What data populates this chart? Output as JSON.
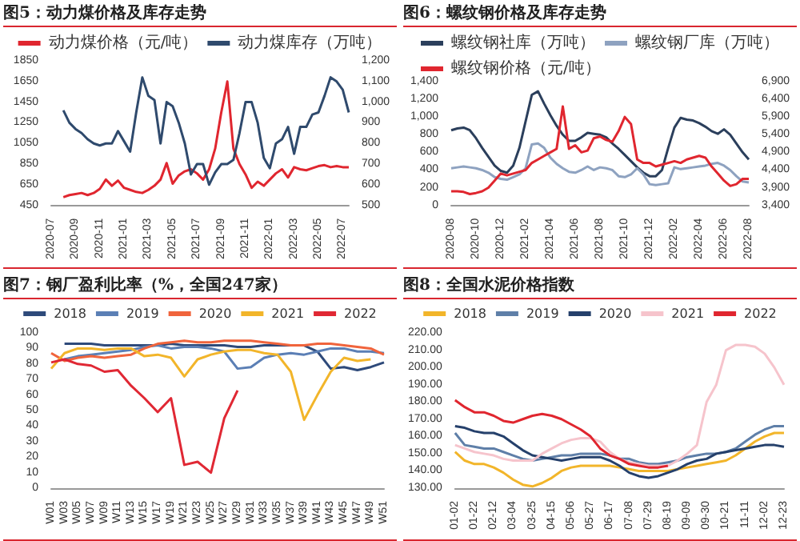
{
  "chart_data": [
    {
      "type": "line",
      "title": "图5：动力煤价格及库存走势",
      "legend": "top",
      "marker": "none",
      "categories": [
        "2020-07",
        null,
        null,
        null,
        "2020-09",
        null,
        null,
        null,
        "2020-11",
        null,
        null,
        null,
        "2021-01",
        null,
        null,
        null,
        "2021-03",
        null,
        null,
        null,
        "2021-05",
        null,
        null,
        null,
        "2021-07",
        null,
        null,
        null,
        "2021-09",
        null,
        null,
        null,
        "2021-11",
        null,
        null,
        null,
        "2022-01",
        null,
        null,
        null,
        "2022-03",
        null,
        null,
        null,
        "2022-05",
        null,
        null,
        null,
        "2022-07",
        null
      ],
      "ylim": [
        450,
        1850
      ],
      "yticks": [
        450,
        650,
        850,
        1050,
        1250,
        1450,
        1650,
        1850
      ],
      "y2lim": [
        500,
        1200
      ],
      "y2ticks": [
        500,
        600,
        700,
        800,
        900,
        {
          "value": 1000,
          "label": "1,000"
        },
        {
          "value": 1100,
          "label": "1,100"
        },
        {
          "value": 1200,
          "label": "1,200"
        }
      ],
      "series": [
        {
          "name": "动力煤价格（元/吨）",
          "color": "#e0262f",
          "values": [
            null,
            null,
            530,
            550,
            560,
            570,
            550,
            570,
            610,
            700,
            640,
            690,
            620,
            600,
            580,
            570,
            600,
            640,
            700,
            860,
            660,
            740,
            780,
            800,
            760,
            700,
            800,
            1000,
            1350,
            1650,
            1000,
            850,
            750,
            620,
            680,
            640,
            700,
            760,
            800,
            720,
            820,
            800,
            790,
            810,
            830,
            840,
            820,
            830,
            820,
            820
          ]
        },
        {
          "name": "动力煤库存（万吨）",
          "color": "#2f4a6d",
          "axis": "y2",
          "values": [
            null,
            null,
            960,
            900,
            870,
            850,
            820,
            800,
            790,
            800,
            800,
            860,
            810,
            760,
            950,
            1120,
            1030,
            1010,
            800,
            1000,
            980,
            900,
            800,
            650,
            700,
            700,
            600,
            660,
            700,
            700,
            720,
            850,
            1000,
            1000,
            900,
            730,
            680,
            800,
            820,
            880,
            750,
            880,
            880,
            940,
            950,
            1030,
            1120,
            1100,
            1060,
            950
          ]
        }
      ]
    },
    {
      "type": "line",
      "title": "图6：螺纹钢价格及库存走势",
      "legend": "top",
      "marker": "none",
      "categories": [
        "2020-08",
        null,
        null,
        null,
        "2020-10",
        null,
        null,
        null,
        "2020-12",
        null,
        null,
        null,
        "2021-02",
        null,
        null,
        null,
        "2021-04",
        null,
        null,
        null,
        "2021-06",
        null,
        null,
        null,
        "2021-08",
        null,
        null,
        null,
        "2021-10",
        null,
        null,
        null,
        "2021-12",
        null,
        null,
        null,
        "2022-02",
        null,
        null,
        null,
        "2022-04",
        null,
        null,
        null,
        "2022-06",
        null,
        null,
        null,
        "2022-08"
      ],
      "ylim": [
        0,
        1400
      ],
      "yticks": [
        0,
        200,
        400,
        600,
        800,
        {
          "value": 1000,
          "label": "1,000"
        },
        {
          "value": 1200,
          "label": "1,200"
        },
        {
          "value": 1400,
          "label": "1,400"
        }
      ],
      "y2lim": [
        3400,
        6900
      ],
      "y2ticks": [
        {
          "value": 3400,
          "label": "3,400"
        },
        {
          "value": 3900,
          "label": "3,900"
        },
        {
          "value": 4400,
          "label": "4,400"
        },
        {
          "value": 4900,
          "label": "4,900"
        },
        {
          "value": 5400,
          "label": "5,400"
        },
        {
          "value": 5900,
          "label": "5,900"
        },
        {
          "value": 6400,
          "label": "6,400"
        },
        {
          "value": 6900,
          "label": "6,900"
        }
      ],
      "series": [
        {
          "name": "螺纹钢社库（万吨）",
          "color": "#2b3f5c",
          "values": [
            850,
            870,
            880,
            850,
            760,
            650,
            550,
            450,
            390,
            370,
            450,
            650,
            950,
            1250,
            1290,
            1150,
            1020,
            900,
            800,
            730,
            730,
            770,
            820,
            810,
            800,
            770,
            700,
            640,
            570,
            500,
            430,
            370,
            330,
            330,
            400,
            650,
            880,
            990,
            970,
            960,
            930,
            890,
            840,
            810,
            860,
            800,
            700,
            600,
            520
          ]
        },
        {
          "name": "螺纹钢厂库（万吨）",
          "color": "#8ea2c0",
          "values": [
            420,
            430,
            440,
            430,
            420,
            400,
            370,
            320,
            300,
            290,
            320,
            350,
            420,
            690,
            700,
            650,
            540,
            470,
            420,
            380,
            370,
            400,
            440,
            400,
            430,
            420,
            400,
            330,
            320,
            350,
            420,
            350,
            240,
            230,
            240,
            250,
            430,
            410,
            420,
            430,
            440,
            450,
            470,
            480,
            450,
            400,
            330,
            270,
            260
          ]
        },
        {
          "name": "螺纹钢价格（元/吨）",
          "color": "#e0262f",
          "axis": "y2",
          "values": [
            3800,
            3800,
            3780,
            3720,
            3750,
            3800,
            3900,
            4100,
            4300,
            4250,
            4300,
            4350,
            4400,
            4600,
            4700,
            4800,
            4900,
            5000,
            6200,
            5000,
            5100,
            4900,
            4950,
            5300,
            5350,
            5250,
            5200,
            5500,
            5900,
            5700,
            4700,
            4600,
            4600,
            4500,
            4550,
            4600,
            4650,
            4600,
            4700,
            4750,
            4800,
            4750,
            4500,
            4300,
            4100,
            3950,
            4000,
            4150,
            4150
          ]
        }
      ]
    },
    {
      "type": "line",
      "title": "图7：钢厂盈利比率（%，全国247家）",
      "legend": "top",
      "marker": "none",
      "categories": [
        "W01",
        "W03",
        "W05",
        "W07",
        "W09",
        "W11",
        "W13",
        "W15",
        "W17",
        "W19",
        "W21",
        "W23",
        "W25",
        "W27",
        "W29",
        "W31",
        "W33",
        "W35",
        "W37",
        "W39",
        "W41",
        "W43",
        "W45",
        "W47",
        "W49",
        "W51"
      ],
      "ylim": [
        0,
        100
      ],
      "yticks": [
        0,
        10,
        20,
        30,
        40,
        50,
        60,
        70,
        80,
        90,
        100
      ],
      "series": [
        {
          "name": "2018",
          "color": "#2e4a7a",
          "values": [
            null,
            93,
            93,
            93,
            92,
            92,
            92,
            92,
            92,
            93,
            92,
            92,
            92,
            92,
            91,
            91,
            92,
            92,
            92,
            92,
            88,
            77,
            78,
            76,
            78,
            81
          ]
        },
        {
          "name": "2019",
          "color": "#5b7fb5",
          "values": [
            null,
            83,
            85,
            86,
            87,
            88,
            89,
            91,
            92,
            90,
            91,
            91,
            90,
            88,
            77,
            78,
            84,
            86,
            87,
            86,
            88,
            90,
            90,
            88,
            88,
            87
          ]
        },
        {
          "name": "2020",
          "color": "#f0643c",
          "values": [
            87,
            82,
            84,
            85,
            84,
            85,
            86,
            90,
            93,
            94,
            95,
            94,
            94,
            95,
            95,
            95,
            94,
            93,
            92,
            92,
            93,
            93,
            92,
            91,
            90,
            86
          ]
        },
        {
          "name": "2021",
          "color": "#f2b52a",
          "values": [
            77,
            87,
            90,
            90,
            89,
            90,
            90,
            85,
            86,
            84,
            72,
            83,
            86,
            88,
            89,
            89,
            87,
            86,
            75,
            44,
            60,
            75,
            84,
            82,
            83,
            null
          ]
        },
        {
          "name": "2022",
          "color": "#e02834",
          "values": [
            81,
            83,
            80,
            79,
            75,
            76,
            66,
            58,
            49,
            58,
            15,
            17,
            10,
            45,
            63,
            null,
            null,
            null,
            null,
            null,
            null,
            null,
            null,
            null,
            null,
            null
          ]
        }
      ]
    },
    {
      "type": "line",
      "title": "图8：全国水泥价格指数",
      "legend": "top",
      "marker": "none",
      "categories": [
        "01-02",
        null,
        "01-22",
        null,
        "02-12",
        null,
        "03-04",
        null,
        "03-25",
        null,
        "04-15",
        null,
        "05-06",
        null,
        "05-27",
        null,
        "06-17",
        null,
        "07-08",
        null,
        "07-29",
        null,
        "08-19",
        null,
        "09-09",
        null,
        "09-30",
        null,
        "10-21",
        null,
        "11-11",
        null,
        "12-02",
        null,
        "12-23"
      ],
      "ylim": [
        130,
        220
      ],
      "yticks": [
        {
          "value": 130,
          "label": "130.00"
        },
        {
          "value": 140,
          "label": "140.00"
        },
        {
          "value": 150,
          "label": "150.00"
        },
        {
          "value": 160,
          "label": "160.00"
        },
        {
          "value": 170,
          "label": "170.00"
        },
        {
          "value": 180,
          "label": "180.00"
        },
        {
          "value": 190,
          "label": "190.00"
        },
        {
          "value": 200,
          "label": "200.00"
        },
        {
          "value": 210,
          "label": "210.00"
        },
        {
          "value": 220,
          "label": "220.00"
        }
      ],
      "series": [
        {
          "name": "2018",
          "color": "#f2b52a",
          "values": [
            151,
            146,
            144,
            144,
            142,
            139,
            135,
            132,
            131,
            133,
            136,
            140,
            142,
            143,
            143,
            143,
            143,
            142,
            141,
            140,
            140,
            140,
            140,
            141,
            142,
            143,
            144,
            145,
            146,
            149,
            153,
            157,
            160,
            162,
            162
          ]
        },
        {
          "name": "2019",
          "color": "#5f7fa8",
          "values": [
            162,
            155,
            154,
            153,
            153,
            151,
            149,
            147,
            146,
            147,
            148,
            149,
            149,
            150,
            150,
            150,
            149,
            147,
            147,
            145,
            144,
            144,
            145,
            146,
            148,
            149,
            150,
            150,
            151,
            153,
            157,
            161,
            164,
            166,
            166
          ]
        },
        {
          "name": "2020",
          "color": "#25406b",
          "values": [
            166,
            165,
            163,
            162,
            162,
            160,
            156,
            152,
            149,
            148,
            147,
            146,
            147,
            148,
            148,
            148,
            146,
            143,
            139,
            137,
            136,
            137,
            139,
            141,
            144,
            146,
            147,
            150,
            151,
            152,
            153,
            154,
            155,
            155,
            154
          ]
        },
        {
          "name": "2021",
          "color": "#f6c4cc",
          "values": [
            155,
            153,
            151,
            150,
            149,
            147,
            146,
            146,
            146,
            150,
            153,
            156,
            158,
            159,
            159,
            157,
            151,
            147,
            145,
            144,
            143,
            143,
            143,
            146,
            150,
            155,
            180,
            190,
            210,
            213,
            213,
            212,
            208,
            200,
            190
          ]
        },
        {
          "name": "2022",
          "color": "#e0262f",
          "values": [
            181,
            177,
            174,
            174,
            172,
            169,
            168,
            170,
            172,
            173,
            172,
            170,
            167,
            164,
            160,
            153,
            149,
            147,
            144,
            143,
            142,
            142,
            143,
            null,
            null,
            null,
            null,
            null,
            null,
            null,
            null,
            null,
            null,
            null,
            null
          ]
        }
      ]
    }
  ]
}
